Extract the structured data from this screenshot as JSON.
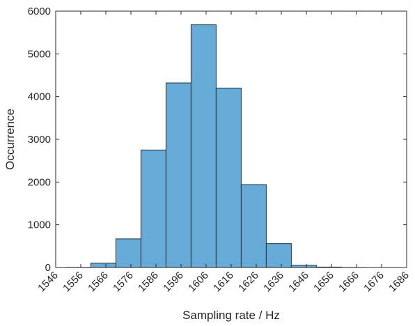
{
  "chart_data": {
    "type": "histogram",
    "x_label": "Sampling rate / Hz",
    "y_label": "Occurrence",
    "bins": [
      1550,
      1560,
      1570,
      1580,
      1590,
      1600,
      1610,
      1620,
      1630,
      1640,
      1650,
      1660,
      1670
    ],
    "values": [
      3,
      100,
      670,
      2750,
      4320,
      5680,
      4200,
      1940,
      560,
      50,
      10,
      2
    ],
    "color": "#66aad7",
    "edge_color": "#1e3445",
    "xlim": [
      1546,
      1686
    ],
    "xticks": [
      1546,
      1556,
      1566,
      1576,
      1586,
      1596,
      1606,
      1616,
      1626,
      1636,
      1646,
      1656,
      1666,
      1676,
      1686
    ],
    "ylim": [
      0,
      6000
    ],
    "yticks": [
      0,
      1000,
      2000,
      3000,
      4000,
      5000,
      6000
    ]
  }
}
